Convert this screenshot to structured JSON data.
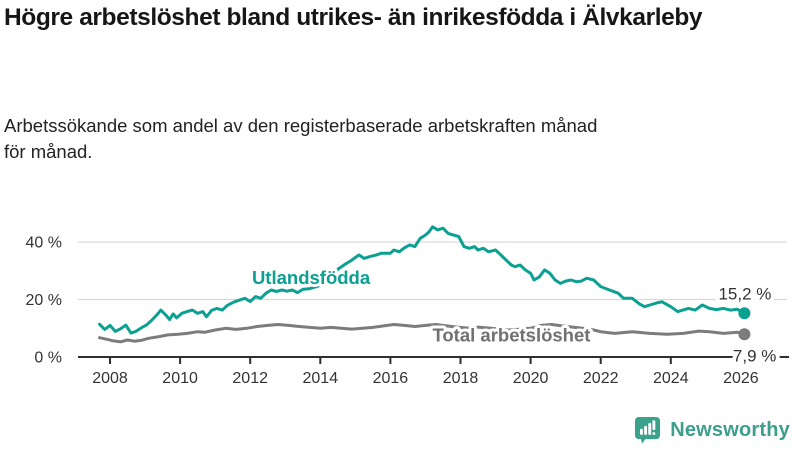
{
  "header": {
    "title": "Högre arbetslöshet bland utrikes- än inrikesfödda i Älvkarleby",
    "subtitle": "Arbetssökande som andel av den registerbaserade arbetskraften månad för månad."
  },
  "footer": {
    "brand": "Newsworthy"
  },
  "colors": {
    "teal_line": "#0ca093",
    "gray_line": "#7c7c7c",
    "gray_label": "#707070",
    "axis": "#2e2e2e",
    "grid": "#d9d9d9",
    "tick_text": "#333333",
    "value_text": "#333333",
    "brand_teal": "#3c9f8d"
  },
  "chart_data": {
    "type": "line",
    "unit": "%",
    "grid": true,
    "legend_position": "inline-labels",
    "x_ticks": [
      2008,
      2010,
      2012,
      2014,
      2016,
      2018,
      2020,
      2022,
      2024,
      2026
    ],
    "y_ticks": [
      {
        "v": 0,
        "label": "0 %"
      },
      {
        "v": 20,
        "label": "20 %"
      },
      {
        "v": 40,
        "label": "40 %"
      }
    ],
    "x_range": [
      2007.6,
      2026.4
    ],
    "y_range": [
      0,
      48
    ],
    "series": [
      {
        "name": "Utlandsfödda",
        "color": "#0ca093",
        "end_value": 15.2,
        "end_label": "15,2 %",
        "label_x": 2012.05,
        "label_y": 25.4,
        "points": [
          [
            2007.7,
            11.4
          ],
          [
            2007.85,
            9.6
          ],
          [
            2008.0,
            11.0
          ],
          [
            2008.15,
            8.9
          ],
          [
            2008.3,
            9.8
          ],
          [
            2008.45,
            11.1
          ],
          [
            2008.6,
            8.3
          ],
          [
            2008.75,
            9.0
          ],
          [
            2008.9,
            10.2
          ],
          [
            2009.05,
            11.2
          ],
          [
            2009.2,
            12.9
          ],
          [
            2009.35,
            14.8
          ],
          [
            2009.45,
            16.3
          ],
          [
            2009.6,
            14.5
          ],
          [
            2009.7,
            13.0
          ],
          [
            2009.8,
            15.0
          ],
          [
            2009.9,
            13.6
          ],
          [
            2010.05,
            15.2
          ],
          [
            2010.2,
            15.8
          ],
          [
            2010.35,
            16.3
          ],
          [
            2010.5,
            15.2
          ],
          [
            2010.65,
            15.8
          ],
          [
            2010.75,
            14.0
          ],
          [
            2010.9,
            16.2
          ],
          [
            2011.05,
            16.9
          ],
          [
            2011.2,
            16.3
          ],
          [
            2011.35,
            18.0
          ],
          [
            2011.55,
            19.2
          ],
          [
            2011.7,
            19.8
          ],
          [
            2011.85,
            20.4
          ],
          [
            2012.0,
            19.3
          ],
          [
            2012.15,
            21.0
          ],
          [
            2012.3,
            20.4
          ],
          [
            2012.45,
            22.2
          ],
          [
            2012.6,
            23.3
          ],
          [
            2012.75,
            22.8
          ],
          [
            2012.9,
            23.3
          ],
          [
            2013.05,
            22.9
          ],
          [
            2013.2,
            23.3
          ],
          [
            2013.35,
            22.4
          ],
          [
            2013.5,
            23.5
          ],
          [
            2013.7,
            23.8
          ],
          [
            2013.9,
            24.5
          ],
          [
            2014.1,
            26.0
          ],
          [
            2014.3,
            28.0
          ],
          [
            2014.5,
            30.5
          ],
          [
            2014.75,
            32.6
          ],
          [
            2014.9,
            33.7
          ],
          [
            2015.1,
            35.5
          ],
          [
            2015.25,
            34.3
          ],
          [
            2015.4,
            34.9
          ],
          [
            2015.6,
            35.5
          ],
          [
            2015.75,
            36.1
          ],
          [
            2016.0,
            36.1
          ],
          [
            2016.1,
            37.2
          ],
          [
            2016.25,
            36.6
          ],
          [
            2016.4,
            38.0
          ],
          [
            2016.55,
            39.0
          ],
          [
            2016.7,
            38.4
          ],
          [
            2016.85,
            41.3
          ],
          [
            2017.0,
            42.4
          ],
          [
            2017.1,
            43.5
          ],
          [
            2017.2,
            45.3
          ],
          [
            2017.35,
            44.2
          ],
          [
            2017.5,
            44.8
          ],
          [
            2017.65,
            43.0
          ],
          [
            2017.8,
            42.4
          ],
          [
            2017.95,
            41.9
          ],
          [
            2018.1,
            38.4
          ],
          [
            2018.25,
            37.8
          ],
          [
            2018.4,
            38.4
          ],
          [
            2018.5,
            37.2
          ],
          [
            2018.65,
            37.8
          ],
          [
            2018.8,
            36.6
          ],
          [
            2019.0,
            37.2
          ],
          [
            2019.15,
            35.5
          ],
          [
            2019.3,
            33.7
          ],
          [
            2019.45,
            32.0
          ],
          [
            2019.55,
            31.4
          ],
          [
            2019.7,
            32.0
          ],
          [
            2019.85,
            30.3
          ],
          [
            2020.0,
            29.1
          ],
          [
            2020.1,
            26.8
          ],
          [
            2020.25,
            27.9
          ],
          [
            2020.4,
            30.3
          ],
          [
            2020.55,
            29.1
          ],
          [
            2020.7,
            26.8
          ],
          [
            2020.85,
            25.6
          ],
          [
            2021.0,
            26.4
          ],
          [
            2021.15,
            26.8
          ],
          [
            2021.3,
            26.2
          ],
          [
            2021.45,
            26.4
          ],
          [
            2021.6,
            27.4
          ],
          [
            2021.8,
            26.8
          ],
          [
            2022.0,
            24.5
          ],
          [
            2022.25,
            23.3
          ],
          [
            2022.5,
            22.2
          ],
          [
            2022.65,
            20.4
          ],
          [
            2022.9,
            20.4
          ],
          [
            2023.1,
            18.5
          ],
          [
            2023.25,
            17.5
          ],
          [
            2023.4,
            18.1
          ],
          [
            2023.6,
            18.8
          ],
          [
            2023.75,
            19.2
          ],
          [
            2024.0,
            17.5
          ],
          [
            2024.2,
            15.8
          ],
          [
            2024.5,
            16.9
          ],
          [
            2024.7,
            16.3
          ],
          [
            2024.9,
            18.1
          ],
          [
            2025.1,
            16.9
          ],
          [
            2025.3,
            16.5
          ],
          [
            2025.5,
            16.9
          ],
          [
            2025.7,
            16.3
          ],
          [
            2025.9,
            16.6
          ],
          [
            2026.1,
            15.2
          ]
        ]
      },
      {
        "name": "Total arbetslöshet",
        "color": "#7c7c7c",
        "label_color": "#707070",
        "end_value": 7.9,
        "end_label": "7,9 %",
        "label_x": 2017.2,
        "label_y": 5.4,
        "points": [
          [
            2007.7,
            6.7
          ],
          [
            2007.9,
            6.2
          ],
          [
            2008.1,
            5.6
          ],
          [
            2008.3,
            5.3
          ],
          [
            2008.5,
            5.9
          ],
          [
            2008.7,
            5.5
          ],
          [
            2008.9,
            5.8
          ],
          [
            2009.1,
            6.5
          ],
          [
            2009.4,
            7.1
          ],
          [
            2009.65,
            7.7
          ],
          [
            2009.95,
            7.9
          ],
          [
            2010.2,
            8.2
          ],
          [
            2010.5,
            8.8
          ],
          [
            2010.7,
            8.6
          ],
          [
            2011.0,
            9.4
          ],
          [
            2011.3,
            10.0
          ],
          [
            2011.6,
            9.6
          ],
          [
            2011.9,
            10.0
          ],
          [
            2012.2,
            10.6
          ],
          [
            2012.5,
            11.0
          ],
          [
            2012.8,
            11.3
          ],
          [
            2013.1,
            11.0
          ],
          [
            2013.4,
            10.6
          ],
          [
            2013.7,
            10.3
          ],
          [
            2014.0,
            10.0
          ],
          [
            2014.3,
            10.3
          ],
          [
            2014.6,
            10.0
          ],
          [
            2014.9,
            9.7
          ],
          [
            2015.2,
            10.0
          ],
          [
            2015.5,
            10.3
          ],
          [
            2015.8,
            10.8
          ],
          [
            2016.1,
            11.3
          ],
          [
            2016.4,
            11.0
          ],
          [
            2016.7,
            10.6
          ],
          [
            2017.0,
            11.0
          ],
          [
            2017.3,
            11.3
          ],
          [
            2017.6,
            10.8
          ],
          [
            2017.9,
            10.4
          ],
          [
            2018.2,
            10.1
          ],
          [
            2018.5,
            10.4
          ],
          [
            2018.8,
            10.1
          ],
          [
            2019.1,
            9.7
          ],
          [
            2019.4,
            9.4
          ],
          [
            2019.7,
            9.7
          ],
          [
            2020.0,
            10.0
          ],
          [
            2020.3,
            11.0
          ],
          [
            2020.6,
            11.3
          ],
          [
            2020.9,
            10.8
          ],
          [
            2021.2,
            10.4
          ],
          [
            2021.5,
            10.0
          ],
          [
            2021.8,
            9.4
          ],
          [
            2022.0,
            8.8
          ],
          [
            2022.4,
            8.2
          ],
          [
            2022.9,
            8.8
          ],
          [
            2023.4,
            8.2
          ],
          [
            2023.9,
            7.9
          ],
          [
            2024.35,
            8.2
          ],
          [
            2024.8,
            9.0
          ],
          [
            2025.1,
            8.8
          ],
          [
            2025.5,
            8.2
          ],
          [
            2025.9,
            8.6
          ],
          [
            2026.1,
            7.9
          ]
        ]
      }
    ]
  }
}
